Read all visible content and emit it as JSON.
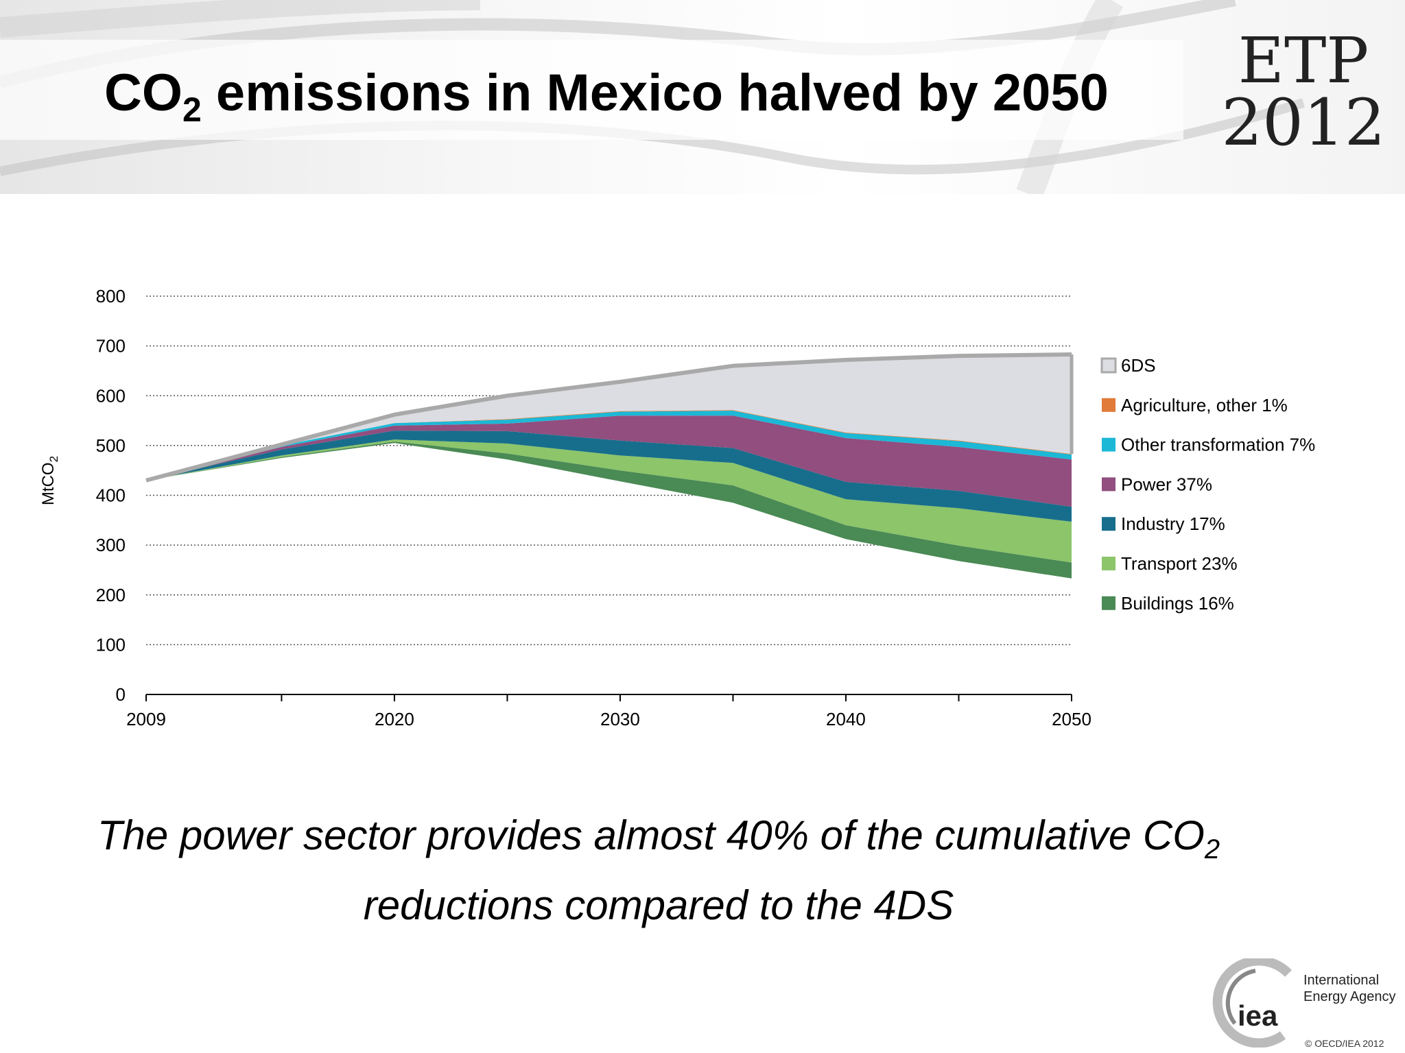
{
  "header": {
    "title_pre": "CO",
    "title_sub": "2",
    "title_post": " emissions in Mexico halved by 2050",
    "badge_line1": "ETP",
    "badge_line2": "2012"
  },
  "subtitle": {
    "line1_pre": "The power sector provides almost 40% of the cumulative CO",
    "line1_sub": "2",
    "line2": "reductions compared to the 4DS"
  },
  "logo": {
    "mark": "iea",
    "name_line1": "International",
    "name_line2": "Energy Agency"
  },
  "copyright": "© OECD/IEA 2012",
  "chart_data": {
    "type": "area",
    "ylabel_pre": "MtCO",
    "ylabel_sub": "2",
    "ylim": [
      0,
      800
    ],
    "yticks": [
      "0",
      "100",
      "200",
      "300",
      "400",
      "500",
      "600",
      "700",
      "800"
    ],
    "xlim": [
      2009,
      2050
    ],
    "xticks": [
      "2009",
      "2020",
      "2030",
      "2040",
      "2050"
    ],
    "grid": "horizontal-dotted",
    "legend_position": "right",
    "x": [
      2009,
      2015,
      2020,
      2025,
      2030,
      2035,
      2040,
      2045,
      2050
    ],
    "baseline_label": "6DS",
    "baseline_values": [
      430,
      502,
      562,
      600,
      628,
      660,
      672,
      680,
      683
    ],
    "residual_values": [
      430,
      475,
      505,
      472,
      428,
      385,
      312,
      268,
      233
    ],
    "series": [
      {
        "name": "Buildings 16%",
        "color": "#4a8a55",
        "values": [
          0,
          2,
          3,
          12,
          22,
          35,
          28,
          31,
          32
        ]
      },
      {
        "name": "Transport 23%",
        "color": "#8cc56a",
        "values": [
          0,
          3,
          4,
          20,
          30,
          45,
          52,
          75,
          82
        ]
      },
      {
        "name": "Industry 17%",
        "color": "#176e8c",
        "values": [
          0,
          12,
          18,
          25,
          30,
          30,
          35,
          35,
          30
        ]
      },
      {
        "name": "Power 37%",
        "color": "#914e7f",
        "values": [
          0,
          5,
          10,
          15,
          50,
          65,
          88,
          88,
          95
        ]
      },
      {
        "name": "Other transformation  7%",
        "color": "#1cb8d6",
        "values": [
          0,
          3,
          5,
          8,
          8,
          10,
          10,
          12,
          10
        ]
      },
      {
        "name": "Agriculture, other 1%",
        "color": "#e07b39",
        "values": [
          0,
          0,
          0,
          1,
          1,
          1,
          1,
          1,
          1
        ]
      }
    ]
  }
}
